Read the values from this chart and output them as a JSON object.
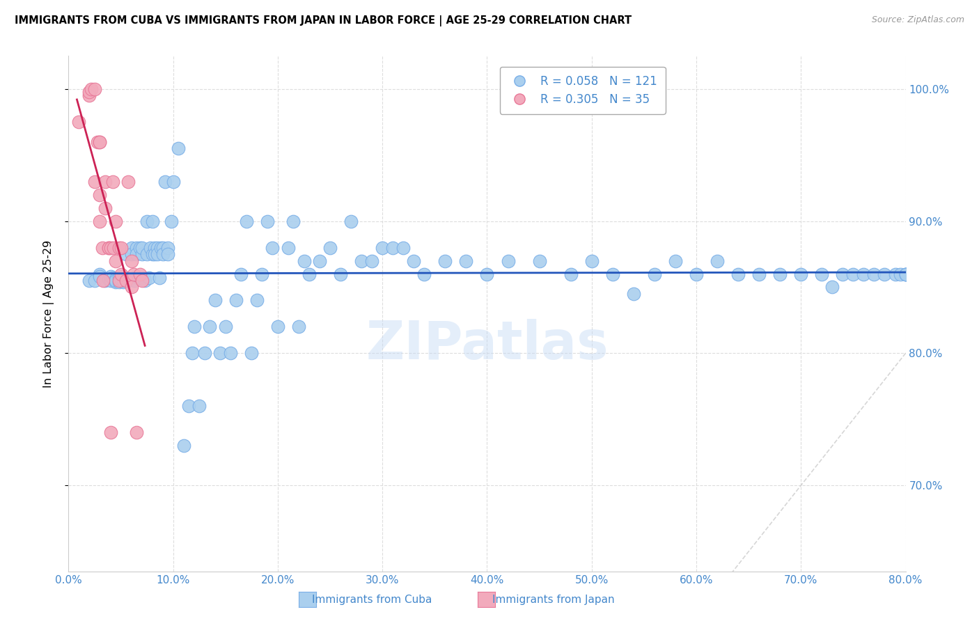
{
  "title": "IMMIGRANTS FROM CUBA VS IMMIGRANTS FROM JAPAN IN LABOR FORCE | AGE 25-29 CORRELATION CHART",
  "source": "Source: ZipAtlas.com",
  "ylabel": "In Labor Force | Age 25-29",
  "xlim": [
    0.0,
    0.8
  ],
  "ylim": [
    0.635,
    1.025
  ],
  "yticks": [
    0.7,
    0.8,
    0.9,
    1.0
  ],
  "xticks": [
    0.0,
    0.1,
    0.2,
    0.3,
    0.4,
    0.5,
    0.6,
    0.7,
    0.8
  ],
  "cuba_color": "#aacfee",
  "japan_color": "#f2aabc",
  "cuba_edge": "#7aafe8",
  "japan_edge": "#e87898",
  "trend_cuba_color": "#2255bb",
  "trend_japan_color": "#cc2255",
  "diag_color": "#cccccc",
  "legend_cuba_R": "R = 0.058",
  "legend_cuba_N": "N = 121",
  "legend_japan_R": "R = 0.305",
  "legend_japan_N": "N = 35",
  "tick_color": "#4488cc",
  "grid_color": "#dddddd",
  "cuba_x": [
    0.02,
    0.025,
    0.03,
    0.03,
    0.035,
    0.038,
    0.04,
    0.04,
    0.042,
    0.045,
    0.045,
    0.045,
    0.048,
    0.048,
    0.05,
    0.05,
    0.05,
    0.052,
    0.052,
    0.055,
    0.055,
    0.057,
    0.058,
    0.06,
    0.06,
    0.062,
    0.063,
    0.065,
    0.065,
    0.067,
    0.068,
    0.07,
    0.07,
    0.072,
    0.073,
    0.075,
    0.075,
    0.077,
    0.078,
    0.08,
    0.08,
    0.082,
    0.082,
    0.085,
    0.085,
    0.087,
    0.088,
    0.09,
    0.09,
    0.092,
    0.095,
    0.095,
    0.098,
    0.1,
    0.105,
    0.11,
    0.115,
    0.118,
    0.12,
    0.125,
    0.13,
    0.135,
    0.14,
    0.145,
    0.15,
    0.155,
    0.16,
    0.165,
    0.17,
    0.175,
    0.18,
    0.185,
    0.19,
    0.195,
    0.2,
    0.21,
    0.215,
    0.22,
    0.225,
    0.23,
    0.24,
    0.25,
    0.26,
    0.27,
    0.28,
    0.29,
    0.3,
    0.31,
    0.32,
    0.33,
    0.34,
    0.36,
    0.38,
    0.4,
    0.42,
    0.45,
    0.48,
    0.5,
    0.52,
    0.54,
    0.56,
    0.58,
    0.6,
    0.62,
    0.64,
    0.66,
    0.68,
    0.7,
    0.72,
    0.73,
    0.74,
    0.75,
    0.76,
    0.77,
    0.78,
    0.79,
    0.795,
    0.8,
    0.8,
    0.8,
    0.8
  ],
  "cuba_y": [
    0.855,
    0.855,
    0.86,
    0.858,
    0.855,
    0.856,
    0.855,
    0.858,
    0.857,
    0.856,
    0.854,
    0.855,
    0.857,
    0.854,
    0.858,
    0.855,
    0.856,
    0.854,
    0.855,
    0.875,
    0.857,
    0.855,
    0.856,
    0.88,
    0.875,
    0.857,
    0.855,
    0.88,
    0.875,
    0.857,
    0.88,
    0.875,
    0.88,
    0.857,
    0.855,
    0.9,
    0.875,
    0.857,
    0.88,
    0.9,
    0.875,
    0.88,
    0.875,
    0.88,
    0.875,
    0.857,
    0.88,
    0.88,
    0.875,
    0.93,
    0.88,
    0.875,
    0.9,
    0.93,
    0.955,
    0.73,
    0.76,
    0.8,
    0.82,
    0.76,
    0.8,
    0.82,
    0.84,
    0.8,
    0.82,
    0.8,
    0.84,
    0.86,
    0.9,
    0.8,
    0.84,
    0.86,
    0.9,
    0.88,
    0.82,
    0.88,
    0.9,
    0.82,
    0.87,
    0.86,
    0.87,
    0.88,
    0.86,
    0.9,
    0.87,
    0.87,
    0.88,
    0.88,
    0.88,
    0.87,
    0.86,
    0.87,
    0.87,
    0.86,
    0.87,
    0.87,
    0.86,
    0.87,
    0.86,
    0.845,
    0.86,
    0.87,
    0.86,
    0.87,
    0.86,
    0.86,
    0.86,
    0.86,
    0.86,
    0.85,
    0.86,
    0.86,
    0.86,
    0.86,
    0.86,
    0.86,
    0.86,
    0.86,
    0.86,
    0.86,
    0.86
  ],
  "japan_x": [
    0.01,
    0.02,
    0.02,
    0.022,
    0.025,
    0.025,
    0.028,
    0.03,
    0.03,
    0.03,
    0.03,
    0.032,
    0.033,
    0.035,
    0.035,
    0.038,
    0.038,
    0.04,
    0.04,
    0.042,
    0.043,
    0.045,
    0.045,
    0.048,
    0.048,
    0.05,
    0.05,
    0.055,
    0.057,
    0.06,
    0.06,
    0.062,
    0.065,
    0.068,
    0.07
  ],
  "japan_y": [
    0.975,
    0.995,
    0.998,
    1.0,
    1.0,
    0.93,
    0.96,
    0.96,
    0.96,
    0.92,
    0.9,
    0.88,
    0.855,
    0.93,
    0.91,
    0.88,
    0.88,
    0.88,
    0.74,
    0.93,
    0.88,
    0.87,
    0.9,
    0.88,
    0.855,
    0.88,
    0.86,
    0.855,
    0.93,
    0.87,
    0.85,
    0.86,
    0.74,
    0.86,
    0.855
  ]
}
